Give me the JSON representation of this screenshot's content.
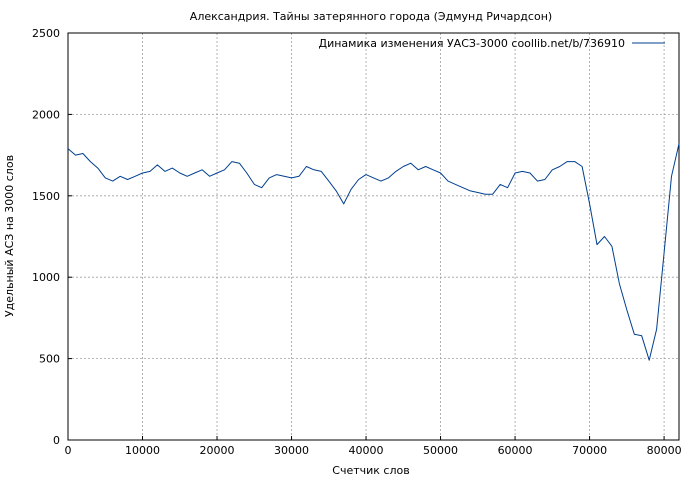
{
  "chart_data": {
    "type": "line",
    "title": "Александрия. Тайны затерянного города (Эдмунд Ричардсон)",
    "xlabel": "Счетчик слов",
    "ylabel": "Удельный АСЗ на 3000 слов",
    "xlim": [
      0,
      82000
    ],
    "ylim": [
      0,
      2500
    ],
    "xticks": [
      0,
      10000,
      20000,
      30000,
      40000,
      50000,
      60000,
      70000,
      80000
    ],
    "yticks": [
      0,
      500,
      1000,
      1500,
      2000,
      2500
    ],
    "grid": true,
    "legend_position": "top-right",
    "series": [
      {
        "name": "Динамика изменения УАСЗ-3000 coollib.net/b/736910",
        "color": "#003f8f",
        "x": [
          0,
          1000,
          2000,
          3000,
          4000,
          5000,
          6000,
          7000,
          8000,
          9000,
          10000,
          11000,
          12000,
          13000,
          14000,
          15000,
          16000,
          17000,
          18000,
          19000,
          20000,
          21000,
          22000,
          23000,
          24000,
          25000,
          26000,
          27000,
          28000,
          29000,
          30000,
          31000,
          32000,
          33000,
          34000,
          35000,
          36000,
          37000,
          38000,
          39000,
          40000,
          41000,
          42000,
          43000,
          44000,
          45000,
          46000,
          47000,
          48000,
          49000,
          50000,
          51000,
          52000,
          53000,
          54000,
          55000,
          56000,
          57000,
          58000,
          59000,
          60000,
          61000,
          62000,
          63000,
          64000,
          65000,
          66000,
          67000,
          68000,
          69000,
          70000,
          71000,
          72000,
          73000,
          74000,
          75000,
          76000,
          77000,
          78000,
          79000,
          80000,
          81000,
          82000
        ],
        "y": [
          1790,
          1750,
          1760,
          1710,
          1670,
          1610,
          1590,
          1620,
          1600,
          1620,
          1640,
          1650,
          1690,
          1650,
          1670,
          1640,
          1620,
          1640,
          1660,
          1620,
          1640,
          1660,
          1710,
          1700,
          1640,
          1570,
          1550,
          1610,
          1630,
          1620,
          1610,
          1620,
          1680,
          1660,
          1650,
          1590,
          1530,
          1450,
          1540,
          1600,
          1630,
          1610,
          1590,
          1610,
          1650,
          1680,
          1700,
          1660,
          1680,
          1660,
          1640,
          1590,
          1570,
          1550,
          1530,
          1520,
          1510,
          1510,
          1570,
          1550,
          1640,
          1650,
          1640,
          1590,
          1600,
          1660,
          1680,
          1710,
          1710,
          1680,
          1450,
          1200,
          1250,
          1190,
          960,
          800,
          650,
          640,
          490,
          680,
          1150,
          1620,
          1820
        ]
      }
    ]
  }
}
